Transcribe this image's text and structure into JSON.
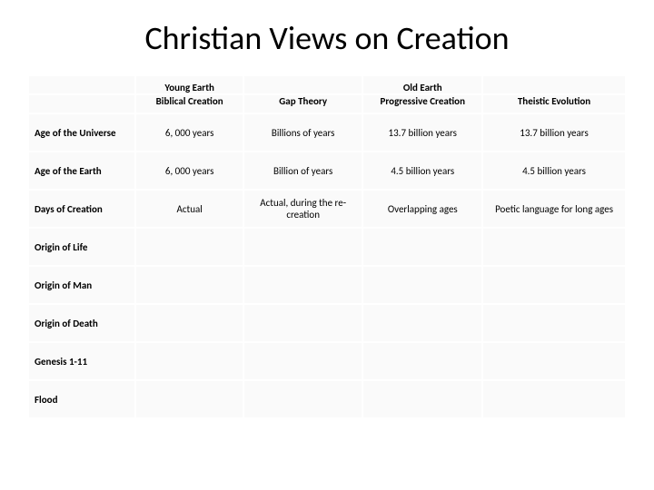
{
  "title": "Christian Views on Creation",
  "table": {
    "super_headers": {
      "young": "Young Earth",
      "old": "Old Earth"
    },
    "columns": [
      "",
      "Biblical Creation",
      "Gap Theory",
      "Progressive Creation",
      "Theistic Evolution"
    ],
    "row_labels": [
      "Age of the Universe",
      "Age of the Earth",
      "Days of Creation",
      "Origin of Life",
      "Origin of Man",
      "Origin of Death",
      "Genesis 1-11",
      "Flood"
    ],
    "rows": [
      [
        "6, 000 years",
        "Billions of years",
        "13.7 billion years",
        "13.7 billion years"
      ],
      [
        "6, 000 years",
        "Billion of years",
        "4.5 billion years",
        "4.5 billion years"
      ],
      [
        "Actual",
        "Actual, during the re-creation",
        "Overlapping ages",
        "Poetic language for long ages"
      ],
      [
        "",
        "",
        "",
        ""
      ],
      [
        "",
        "",
        "",
        ""
      ],
      [
        "",
        "",
        "",
        ""
      ],
      [
        "",
        "",
        "",
        ""
      ],
      [
        "",
        "",
        "",
        ""
      ]
    ],
    "background_color": "#ffffff",
    "cell_bg": "#fafafa",
    "border_color": "#ffffff",
    "header_fontsize": 11,
    "cell_fontsize": 11,
    "title_fontsize": 36
  }
}
